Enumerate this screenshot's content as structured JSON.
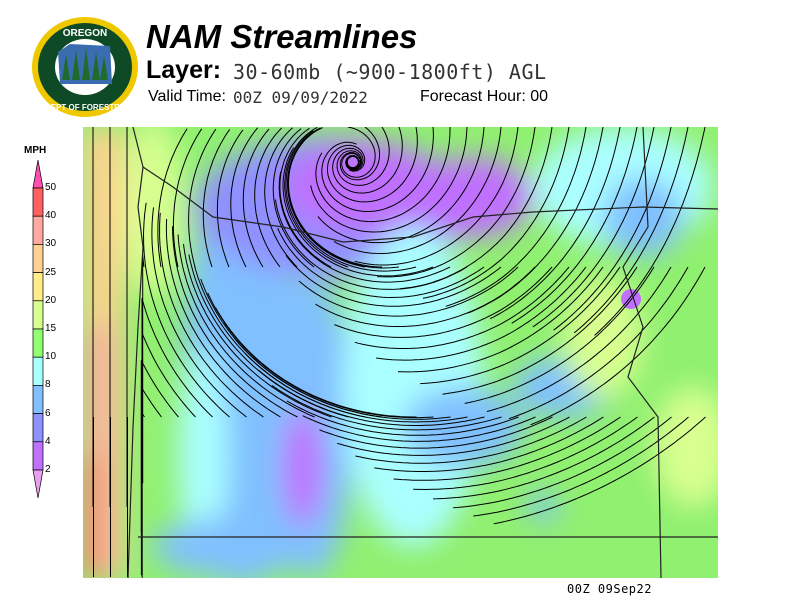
{
  "header": {
    "logo_text": "OREGON DEPARTMENT OF FORESTRY",
    "title": "NAM Streamlines",
    "layer_label": "Layer:",
    "layer_value": "30-60mb (~900-1800ft) AGL",
    "valid_time_label": "Valid Time:",
    "valid_time_value": "00Z 09/09/2022",
    "forecast_hour": "Forecast Hour: 00"
  },
  "legend": {
    "unit": "MPH",
    "levels": [
      {
        "label": "50",
        "color": "#ff6060"
      },
      {
        "label": "40",
        "color": "#ffaaa0"
      },
      {
        "label": "30",
        "color": "#ffd090"
      },
      {
        "label": "25",
        "color": "#ffee88"
      },
      {
        "label": "20",
        "color": "#d8ff90"
      },
      {
        "label": "15",
        "color": "#90ff70"
      },
      {
        "label": "10",
        "color": "#aaffff"
      },
      {
        "label": "8",
        "color": "#80c0ff"
      },
      {
        "label": "6",
        "color": "#9090ff"
      },
      {
        "label": "4",
        "color": "#c070ff"
      },
      {
        "label": "2",
        "color": ""
      }
    ],
    "above_color": "#ff50b0",
    "below_color": "#e8a0f0"
  },
  "footer": {
    "timestamp": "00Z 09Sep22"
  }
}
